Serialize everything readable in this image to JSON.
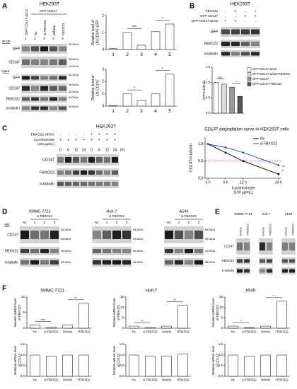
{
  "panels": {
    "A": {
      "label": "A",
      "cell": "HEK293T",
      "group": "GFP-CD147",
      "lanes": [
        "GFP-CD147-ΔICD",
        "Nc",
        "si FBXO22",
        "Vehicle",
        "FBXO22"
      ],
      "numbers": [
        "1",
        "2",
        "3",
        "4",
        "5"
      ],
      "ip": "IP:Ub",
      "input": "Input",
      "ip_rows": [
        "GFP",
        "CD147"
      ],
      "input_rows": [
        "GFP",
        "CD147",
        "FBXO22",
        "α-tubulin"
      ],
      "ip_mw": [
        "80.0kDa",
        "58.0kDa",
        "46.0kDa"
      ],
      "input_mw": [
        "80.0kDa",
        "58.0kDa",
        "46.0kDa",
        "44.0kDa",
        "58.0kDa"
      ]
    },
    "B": {
      "label": "B",
      "cell": "HEK293T",
      "conditions": [
        {
          "name": "FBXO22",
          "signs": [
            "-",
            "+",
            "-",
            "+"
          ]
        },
        {
          "name": "GFP-CD147",
          "signs": [
            "-",
            "-",
            "+",
            "+"
          ]
        },
        {
          "name": "GFP-CD147-ΔICD",
          "signs": [
            "+",
            "+",
            "-",
            "-"
          ]
        }
      ],
      "rows": [
        "GFP",
        "FBXO22",
        "α-tubulin"
      ]
    },
    "C": {
      "label": "C",
      "cell": "HEK293T",
      "conditions": [
        {
          "name": "FBXO22 siRNA",
          "signs": [
            "-",
            "-",
            "-",
            "-",
            "+",
            "+",
            "+",
            "+"
          ]
        },
        {
          "name": [
            "Cycloheximide",
            "(100 μg/mL)"
          ],
          "signs": [
            "+",
            "+",
            "+",
            "+",
            "+",
            "+",
            "+",
            "+"
          ]
        }
      ],
      "times": [
        "0",
        "6",
        "12",
        "24",
        "0",
        "6",
        "12",
        "24"
      ],
      "unit": "(h)",
      "rows": [
        "CD147",
        "FBXO22",
        "α-tubulin"
      ]
    },
    "D": {
      "label": "D",
      "wb": "WB",
      "rows": [
        "CD147",
        "FBXO22",
        "α-tubulin"
      ],
      "blots": [
        {
          "cell": "SMMC-7721",
          "group": "si FBXO22",
          "lanes": [
            "Nc",
            "1",
            "2",
            "3"
          ],
          "mw": [
            "58.0kDa",
            "46.0kDa",
            "46.0kDa",
            "58.0kDa"
          ]
        },
        {
          "cell": "Huh-7",
          "group": "si FBXO22",
          "lanes": [
            "Nc",
            "1",
            "2",
            "3"
          ],
          "mw": [
            "58.0kDa",
            "46.0kDa",
            "46.0kDa",
            "58.0kDa"
          ]
        },
        {
          "cell": "A549",
          "group": "si FBXO22",
          "lanes": [
            "Nc",
            "1",
            "2",
            "3"
          ],
          "mw": [
            "58.0kDa",
            "46.0kDa",
            "46.0kDa",
            "58.0kDa"
          ]
        }
      ]
    },
    "E": {
      "label": "E",
      "rows": [
        "CD147",
        "FBXO22",
        "α-tubulin"
      ],
      "blots": [
        {
          "cell": "SMMC-7721",
          "lanes": [
            "Vehicle",
            "+FBXO22"
          ]
        },
        {
          "cell": "Huh-7",
          "lanes": [
            "Vehicle",
            "+FBXO22"
          ]
        },
        {
          "cell": "A549",
          "lanes": [
            "Vehicle",
            "+FBXO22"
          ]
        }
      ]
    },
    "F": {
      "label": "F"
    }
  },
  "chart_data": [
    {
      "type": "bar",
      "ylabel": [
        "Relative level of",
        "Ub-CD147-GFP"
      ],
      "categories": [
        "1",
        "2",
        "3",
        "4",
        "5"
      ],
      "values": [
        0.05,
        1.0,
        0.25,
        1.05,
        1.5
      ],
      "color": "#ffffff",
      "ylim": [
        0,
        2
      ],
      "yticks": [
        0,
        1,
        2
      ],
      "annotations": [
        "***",
        "*"
      ]
    },
    {
      "type": "bar",
      "ylabel": [
        "Relative level of",
        "Ub-CD147"
      ],
      "categories": [
        "1",
        "2",
        "3",
        "4",
        "5"
      ],
      "values": [
        0.05,
        1.0,
        0.45,
        1.0,
        2.6
      ],
      "color": "#ffffff",
      "ylim": [
        0,
        3
      ],
      "yticks": [
        0,
        1,
        2,
        3
      ],
      "annotations": [
        "*",
        "*"
      ]
    },
    {
      "type": "bar",
      "ylabel": [
        "GFP/α-tubulin"
      ],
      "categories": [
        "GFP-CD147-ΔICD",
        "GFP-CD147-ΔICD+FBXO22",
        "GFP-CD147",
        "GFP-CD147+FBXO22"
      ],
      "values": [
        1.0,
        0.95,
        0.85,
        0.55
      ],
      "colors": [
        "#ffffff",
        "#dddddd",
        "#9a9a9a",
        "#555555"
      ],
      "ylim": [
        0,
        1.5
      ],
      "yticks": [
        {
          "value": 0,
          "label": "0.0"
        },
        {
          "value": 0.5,
          "label": "0.5"
        },
        {
          "value": 1,
          "label": "1.0"
        },
        {
          "value": 1.5,
          "label": "1.5"
        }
      ],
      "annotations": [
        "ns",
        "*"
      ]
    },
    {
      "type": "line",
      "title": "CD147 degradation curve in HEK293T cells",
      "ylabel": "CD147/α-tubulin",
      "xlabel": [
        "Cycloheximide",
        "(100 μg/mL)"
      ],
      "x": [
        0,
        6,
        12,
        24
      ],
      "xlim": [
        -1,
        25
      ],
      "xticks": [
        {
          "value": 0,
          "label": "0 h"
        },
        {
          "value": 6,
          "label": "6 h"
        },
        {
          "value": 12,
          "label": "12 h"
        },
        {
          "value": 24,
          "label": "24 h"
        }
      ],
      "ylim": [
        0,
        1.2
      ],
      "yticks": [
        {
          "value": 0,
          "label": "0.0"
        },
        {
          "value": 0.5,
          "label": "0.5"
        },
        {
          "value": 1,
          "label": "1.0"
        }
      ],
      "series": [
        {
          "name": "Nc",
          "color": "#000000",
          "values": [
            1.0,
            0.75,
            0.5,
            0.12
          ]
        },
        {
          "name": "si FBXO22",
          "color": "#1f3fd0",
          "values": [
            1.0,
            0.9,
            0.75,
            0.38
          ]
        }
      ],
      "annotations": [
        "**",
        "*"
      ]
    },
    {
      "type": "bar",
      "title": "SMMC-7721",
      "ylabel": [
        "Relative mRNA level",
        "of FBXO22"
      ],
      "categories": [
        "Nc",
        "si FBXO22",
        "Vehicle",
        "+FBXO22"
      ],
      "values": [
        1.0,
        0.3,
        1.0,
        8.0
      ],
      "color": "#ffffff",
      "ylim": [
        0,
        10
      ],
      "yticks": [
        0,
        5,
        10
      ],
      "annotations": [
        "****",
        "**"
      ]
    },
    {
      "type": "bar",
      "title": "Huh-7",
      "ylabel": [
        "Relative mRNA level",
        "of FBXO22"
      ],
      "categories": [
        "Nc",
        "si FBXO22",
        "Vehicle",
        "+FBXO22"
      ],
      "values": [
        1.0,
        0.3,
        1.0,
        11.0
      ],
      "color": "#ffffff",
      "ylim": [
        0,
        15
      ],
      "yticks": [
        0,
        5,
        10,
        15
      ],
      "annotations": [
        "**",
        "**"
      ]
    },
    {
      "type": "bar",
      "title": "A549",
      "ylabel": [
        "Relative mRNA level",
        "of FBXO22"
      ],
      "categories": [
        "Nc",
        "si FBXO22",
        "Vehicle",
        "+FBXO22"
      ],
      "values": [
        1.0,
        0.2,
        1.0,
        13.0
      ],
      "color": "#ffffff",
      "ylim": [
        0,
        15
      ],
      "yticks": [
        0,
        5,
        10,
        15
      ],
      "annotations": [
        "*",
        "*"
      ]
    },
    {
      "type": "bar",
      "ylabel": [
        "Relative mRNA level",
        "of CD147"
      ],
      "categories": [
        "Nc",
        "si FBXO22",
        "Vehicle",
        "+FBXO22"
      ],
      "values": [
        1.0,
        0.95,
        1.0,
        1.0
      ],
      "color": "#ffffff",
      "ylim": [
        0,
        1.5
      ],
      "yticks": [
        {
          "value": 0,
          "label": "0.0"
        },
        {
          "value": 0.5,
          "label": "0.5"
        },
        {
          "value": 1,
          "label": "1.0"
        },
        {
          "value": 1.5,
          "label": "1.5"
        }
      ]
    },
    {
      "type": "bar",
      "ylabel": [
        "Relative mRNA level",
        "of CD147"
      ],
      "categories": [
        "Nc",
        "si FBXO22",
        "Vehicle",
        "+FBXO22"
      ],
      "values": [
        1.0,
        0.95,
        0.95,
        1.05
      ],
      "color": "#ffffff",
      "ylim": [
        0,
        1.5
      ],
      "yticks": [
        {
          "value": 0,
          "label": "0.0"
        },
        {
          "value": 0.5,
          "label": "0.5"
        },
        {
          "value": 1,
          "label": "1.0"
        },
        {
          "value": 1.5,
          "label": "1.5"
        }
      ]
    },
    {
      "type": "bar",
      "ylabel": [
        "Relative mRNA level",
        "of CD147"
      ],
      "categories": [
        "Nc",
        "si FBXO22",
        "Vehicle",
        "+FBXO22"
      ],
      "values": [
        1.0,
        0.95,
        1.0,
        1.0
      ],
      "color": "#ffffff",
      "ylim": [
        0,
        1.5
      ],
      "yticks": [
        {
          "value": 0,
          "label": "0.0"
        },
        {
          "value": 0.5,
          "label": "0.5"
        },
        {
          "value": 1,
          "label": "1.0"
        },
        {
          "value": 1.5,
          "label": "1.5"
        }
      ]
    }
  ]
}
